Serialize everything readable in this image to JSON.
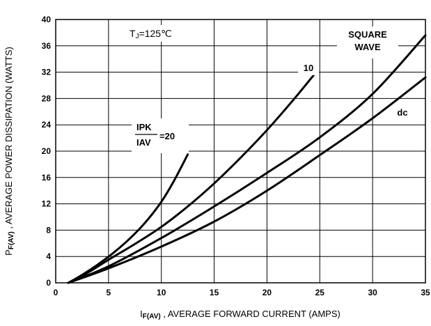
{
  "chart_data": {
    "type": "line",
    "xlabel": "I F(AV) , AVERAGE FORWARD CURRENT (AMPS)",
    "xlabel_parts": {
      "main": "I",
      "sub": "F(AV)",
      "rest": " , AVERAGE FORWARD CURRENT (AMPS)"
    },
    "ylabel": "PF(AV) , AVERAGE POWER DISSIPATION (WATTS)",
    "ylabel_parts": {
      "main": "P",
      "sub": "F(AV)",
      "rest": " , AVERAGE POWER DISSIPATION (WATTS)"
    },
    "xlim": [
      0,
      35
    ],
    "ylim": [
      0,
      40
    ],
    "xticks": [
      0,
      5,
      10,
      15,
      20,
      25,
      30,
      35
    ],
    "yticks": [
      0,
      4,
      8,
      12,
      16,
      20,
      24,
      28,
      32,
      36,
      40
    ],
    "grid": true,
    "annotations": {
      "tj": "TJ=125℃",
      "tj_parts": {
        "main": "T",
        "sub": "J",
        "rest": "=125℃"
      },
      "ratio_numerator": "IPK",
      "ratio_denominator": "IAV",
      "ratio_value": "=20",
      "square_wave_line1": "SQUARE",
      "square_wave_line2": "WAVE"
    },
    "series": [
      {
        "name": "=20",
        "x": [
          1.2,
          2.5,
          4,
          5.5,
          7,
          8.5,
          10,
          11.2,
          12.5
        ],
        "y": [
          0,
          1.2,
          2.8,
          4.6,
          6.7,
          9.2,
          12.3,
          15.5,
          19.5
        ]
      },
      {
        "name": "10",
        "x": [
          1.2,
          3,
          5,
          7.5,
          10,
          12.5,
          15,
          17.5,
          20,
          22.5,
          24.5
        ],
        "y": [
          0,
          1.5,
          3.5,
          5.9,
          8.5,
          11.6,
          15.1,
          19,
          23.2,
          27.8,
          31.7
        ]
      },
      {
        "name": "SQUARE WAVE",
        "x": [
          1.2,
          5,
          10,
          15,
          20,
          25,
          30,
          35
        ],
        "y": [
          0,
          2.5,
          6.8,
          11.6,
          16.7,
          22.1,
          28.7,
          37.6
        ]
      },
      {
        "name": "dc",
        "x": [
          1.2,
          5,
          10,
          15,
          20,
          25,
          30,
          35
        ],
        "y": [
          0,
          2.2,
          5.5,
          9.3,
          14.0,
          19.4,
          25.0,
          31.2
        ]
      }
    ],
    "series_labels": [
      "=20",
      "10",
      "SQUARE WAVE",
      "dc"
    ]
  }
}
